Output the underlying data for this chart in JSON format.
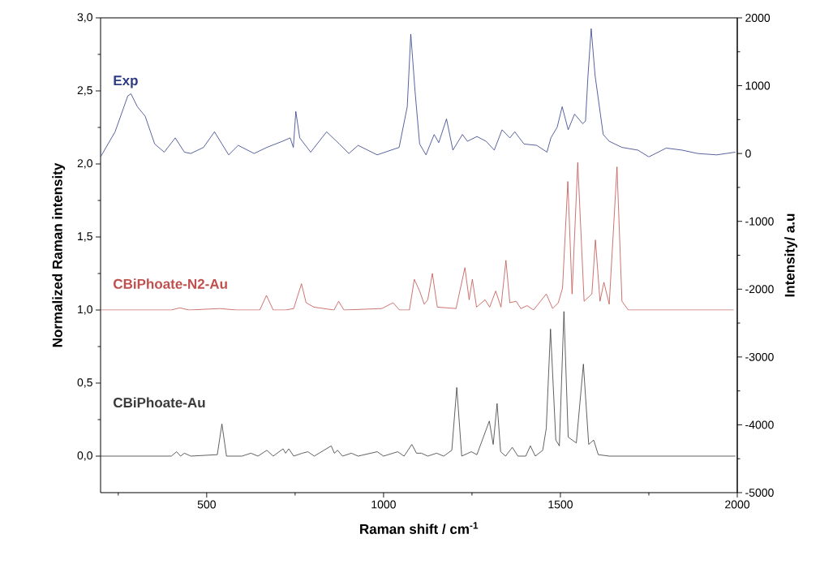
{
  "chart_data": {
    "type": "line",
    "xlabel": "Raman shift / cm$^{-1}$",
    "ylabel": "Normalized Raman intensity",
    "y2label": "Intensity/ a.u",
    "xlim": [
      200,
      2000
    ],
    "xticks": [
      {
        "value": 250,
        "label": null
      },
      500,
      {
        "value": 750,
        "label": null
      },
      1000,
      {
        "value": 1250,
        "label": null
      },
      1500,
      {
        "value": 1750,
        "label": null
      },
      2000
    ],
    "ylim": [
      -0.25,
      3.0
    ],
    "yticks": [
      {
        "value": 0,
        "label": "0,0"
      },
      {
        "value": 0.25,
        "label": null
      },
      {
        "value": 0.5,
        "label": "0,5"
      },
      {
        "value": 0.75,
        "label": null
      },
      {
        "value": 1.0,
        "label": "1,0"
      },
      {
        "value": 1.25,
        "label": null
      },
      {
        "value": 1.5,
        "label": "1,5"
      },
      {
        "value": 1.75,
        "label": null
      },
      {
        "value": 2.0,
        "label": "2,0"
      },
      {
        "value": 2.25,
        "label": null
      },
      {
        "value": 2.5,
        "label": "2,5"
      },
      {
        "value": 2.75,
        "label": null
      },
      {
        "value": 3.0,
        "label": "3,0"
      }
    ],
    "y2lim": [
      -5000,
      2000
    ],
    "y2ticks": [
      -5000,
      {
        "value": -4500,
        "label": null
      },
      -4000,
      {
        "value": -3500,
        "label": null
      },
      -3000,
      {
        "value": -2500,
        "label": null
      },
      -2000,
      {
        "value": -1500,
        "label": null
      },
      -1000,
      {
        "value": -500,
        "label": null
      },
      0,
      {
        "value": 500,
        "label": null
      },
      1000,
      {
        "value": 1500,
        "label": null
      },
      2000
    ],
    "series": [
      {
        "name": "Exp",
        "color": "#2e3c86",
        "axis": "y2",
        "x": [
          200,
          241,
          277,
          286,
          304,
          326,
          353,
          380,
          411,
          437,
          455,
          491,
          522,
          562,
          589,
          634,
          670,
          714,
          736,
          745,
          752,
          763,
          794,
          839,
          875,
          902,
          928,
          982,
          1044,
          1067,
          1077,
          1089,
          1102,
          1120,
          1143,
          1156,
          1178,
          1196,
          1223,
          1237,
          1264,
          1290,
          1313,
          1335,
          1357,
          1371,
          1397,
          1433,
          1462,
          1473,
          1491,
          1505,
          1522,
          1540,
          1563,
          1571,
          1578,
          1587,
          1598,
          1621,
          1638,
          1674,
          1719,
          1750,
          1799,
          1844,
          1888,
          1942,
          1995
        ],
        "values": [
          -50,
          320,
          850,
          880,
          690,
          550,
          140,
          20,
          230,
          20,
          0,
          90,
          320,
          -20,
          120,
          0,
          90,
          180,
          230,
          90,
          620,
          230,
          20,
          320,
          140,
          0,
          120,
          -20,
          90,
          690,
          1760,
          920,
          140,
          -20,
          280,
          160,
          510,
          50,
          280,
          180,
          250,
          180,
          50,
          350,
          230,
          320,
          140,
          120,
          20,
          230,
          390,
          690,
          350,
          580,
          440,
          480,
          1150,
          1840,
          1150,
          280,
          180,
          90,
          50,
          -50,
          80,
          50,
          0,
          -20,
          20
        ]
      },
      {
        "name": "CBiPhoate-N2-Au",
        "color": "#c0504d",
        "x": [
          200,
          400,
          424,
          450,
          536,
          585,
          650,
          669,
          688,
          723,
          746,
          768,
          781,
          803,
          860,
          873,
          888,
          995,
          1027,
          1045,
          1073,
          1087,
          1102,
          1115,
          1125,
          1138,
          1152,
          1205,
          1230,
          1242,
          1251,
          1263,
          1287,
          1300,
          1317,
          1332,
          1346,
          1357,
          1375,
          1388,
          1406,
          1424,
          1460,
          1478,
          1494,
          1506,
          1521,
          1533,
          1549,
          1567,
          1589,
          1599,
          1612,
          1623,
          1638,
          1660,
          1674,
          1692,
          1990
        ],
        "values": [
          1.0,
          1.0,
          1.015,
          1.0,
          1.01,
          1.0,
          1.0,
          1.1,
          1.0,
          1.0,
          1.01,
          1.18,
          1.05,
          1.02,
          1.0,
          1.06,
          1.0,
          1.01,
          1.05,
          1.0,
          1.0,
          1.21,
          1.13,
          1.04,
          1.07,
          1.25,
          1.02,
          1.01,
          1.29,
          1.07,
          1.21,
          1.02,
          1.07,
          1.02,
          1.13,
          1.02,
          1.34,
          1.05,
          1.06,
          1.01,
          1.03,
          1.0,
          1.11,
          1.01,
          1.05,
          1.15,
          1.88,
          1.11,
          2.01,
          1.06,
          1.11,
          1.48,
          1.06,
          1.19,
          1.04,
          1.98,
          1.06,
          1.0,
          1.0
        ]
      },
      {
        "name": "CBiPhoate-Au",
        "color": "#3a3a3a",
        "x": [
          200,
          400,
          415,
          426,
          437,
          455,
          530,
          543,
          556,
          600,
          625,
          645,
          670,
          688,
          716,
          723,
          732,
          746,
          770,
          786,
          804,
          852,
          861,
          870,
          884,
          909,
          928,
          982,
          1000,
          1040,
          1058,
          1080,
          1093,
          1107,
          1125,
          1150,
          1170,
          1193,
          1207,
          1221,
          1248,
          1264,
          1299,
          1310,
          1321,
          1331,
          1345,
          1364,
          1380,
          1402,
          1415,
          1429,
          1450,
          1460,
          1472,
          1487,
          1497,
          1510,
          1522,
          1545,
          1565,
          1580,
          1594,
          1607,
          1638,
          1995
        ],
        "values": [
          0.0,
          0.0,
          0.03,
          0.0,
          0.02,
          0.0,
          0.01,
          0.22,
          0.0,
          0.0,
          0.02,
          0.0,
          0.04,
          0.0,
          0.05,
          0.02,
          0.05,
          0.0,
          0.02,
          0.03,
          0.0,
          0.07,
          0.02,
          0.04,
          0.0,
          0.02,
          0.0,
          0.03,
          0.0,
          0.03,
          0.0,
          0.08,
          0.02,
          0.02,
          0.0,
          0.02,
          0.0,
          0.04,
          0.47,
          0.0,
          0.03,
          0.01,
          0.24,
          0.08,
          0.36,
          0.03,
          0.0,
          0.06,
          0.0,
          0.0,
          0.07,
          0.0,
          0.04,
          0.19,
          0.87,
          0.11,
          0.07,
          0.99,
          0.13,
          0.09,
          0.63,
          0.08,
          0.11,
          0.01,
          0.0,
          0.0
        ]
      }
    ]
  }
}
